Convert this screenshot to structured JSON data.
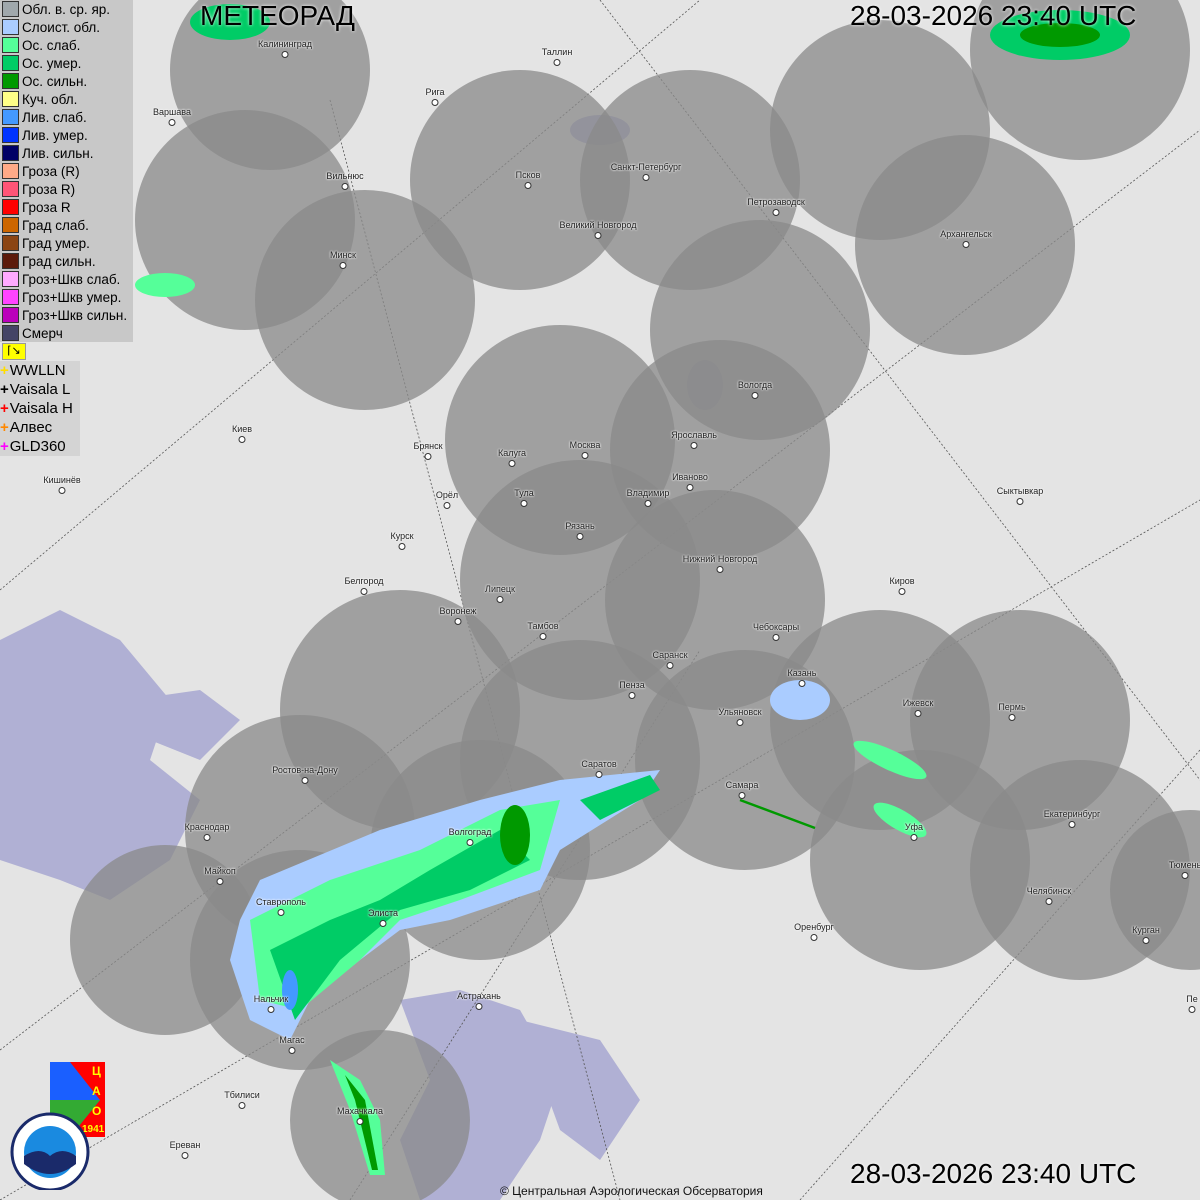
{
  "header": {
    "title": "МЕТЕОРАД",
    "datetime_top": "28-03-2026  23:40 UTC",
    "datetime_bottom": "28-03-2026  23:40 UTC"
  },
  "legend": [
    {
      "label": "Обл. в. ср. яр.",
      "color": "#a0a8ac"
    },
    {
      "label": "Слоист. обл.",
      "color": "#aaccff"
    },
    {
      "label": "Ос. слаб.",
      "color": "#55ff99"
    },
    {
      "label": "Ос. умер.",
      "color": "#00cc66"
    },
    {
      "label": "Ос. сильн.",
      "color": "#009900"
    },
    {
      "label": "Куч. обл.",
      "color": "#ffff88"
    },
    {
      "label": "Лив. слаб.",
      "color": "#4499ff"
    },
    {
      "label": "Лив. умер.",
      "color": "#0033ff"
    },
    {
      "label": "Лив. сильн.",
      "color": "#000066"
    },
    {
      "label": "Гроза (R)",
      "color": "#ffaa88"
    },
    {
      "label": "Гроза R)",
      "color": "#ff5577"
    },
    {
      "label": "Гроза R",
      "color": "#ff0000"
    },
    {
      "label": "Град слаб.",
      "color": "#cc6600"
    },
    {
      "label": "Град умер.",
      "color": "#8b4513"
    },
    {
      "label": "Град сильн.",
      "color": "#5c1a0a"
    },
    {
      "label": "Гроз+Шкв слаб.",
      "color": "#ffaaff"
    },
    {
      "label": "Гроз+Шкв умер.",
      "color": "#ff44ff"
    },
    {
      "label": "Гроз+Шкв сильн.",
      "color": "#bb00bb"
    },
    {
      "label": "Смерч",
      "color": "#444466"
    }
  ],
  "lightning_toggle": "flag-icon",
  "lightning": [
    {
      "label": "WWLLN",
      "color": "#ffdd00"
    },
    {
      "label": "Vaisala L",
      "color": "#000000"
    },
    {
      "label": "Vaisala H",
      "color": "#ff0000"
    },
    {
      "label": "Алвес",
      "color": "#ff8800"
    },
    {
      "label": "GLD360",
      "color": "#ff00ff"
    }
  ],
  "cities": [
    {
      "n": "Калининград"
    },
    {
      "n": "Таллин"
    },
    {
      "n": "Рига"
    },
    {
      "n": "Варшава"
    },
    {
      "n": "Вильнюс"
    },
    {
      "n": "Псков"
    },
    {
      "n": "Санкт-Петербург"
    },
    {
      "n": "Петрозаводск"
    },
    {
      "n": "Архангельск"
    },
    {
      "n": "Великий Новгород"
    },
    {
      "n": "Минск"
    },
    {
      "n": "Вологда"
    },
    {
      "n": "Ярославль"
    },
    {
      "n": "Москва"
    },
    {
      "n": "Калуга"
    },
    {
      "n": "Брянск"
    },
    {
      "n": "Киев"
    },
    {
      "n": "Иваново"
    },
    {
      "n": "Владимир"
    },
    {
      "n": "Тула"
    },
    {
      "n": "Орёл"
    },
    {
      "n": "Кишинёв"
    },
    {
      "n": "Сыктывкар"
    },
    {
      "n": "Рязань"
    },
    {
      "n": "Курск"
    },
    {
      "n": "Нижний Новгород"
    },
    {
      "n": "Белгород"
    },
    {
      "n": "Липецк"
    },
    {
      "n": "Киров"
    },
    {
      "n": "Воронеж"
    },
    {
      "n": "Тамбов"
    },
    {
      "n": "Чебоксары"
    },
    {
      "n": "Саранск"
    },
    {
      "n": "Казань"
    },
    {
      "n": "Пенза"
    },
    {
      "n": "Ижевск"
    },
    {
      "n": "Пермь"
    },
    {
      "n": "Ульяновск"
    },
    {
      "n": "Ростов-на-Дону"
    },
    {
      "n": "Саратов"
    },
    {
      "n": "Самара"
    },
    {
      "n": "Екатеринбург"
    },
    {
      "n": "Уфа"
    },
    {
      "n": "Краснодар"
    },
    {
      "n": "Волгоград"
    },
    {
      "n": "Майкоп"
    },
    {
      "n": "Тюмень"
    },
    {
      "n": "Челябинск"
    },
    {
      "n": "Ставрополь"
    },
    {
      "n": "Элиста"
    },
    {
      "n": "Оренбург"
    },
    {
      "n": "Курган"
    },
    {
      "n": "Астрахань"
    },
    {
      "n": "Нальчик"
    },
    {
      "n": "Магас"
    },
    {
      "n": "Пе"
    },
    {
      "n": "Тбилиси"
    },
    {
      "n": "Махачкала"
    },
    {
      "n": "Ереван"
    }
  ],
  "logos": {
    "tsao": "ЦАО 1941",
    "roshydromet": "РОСГИДРОМЕТ ROSHYDROMET"
  },
  "copyright": "© Центральная Аэрологическая Обсерватория"
}
